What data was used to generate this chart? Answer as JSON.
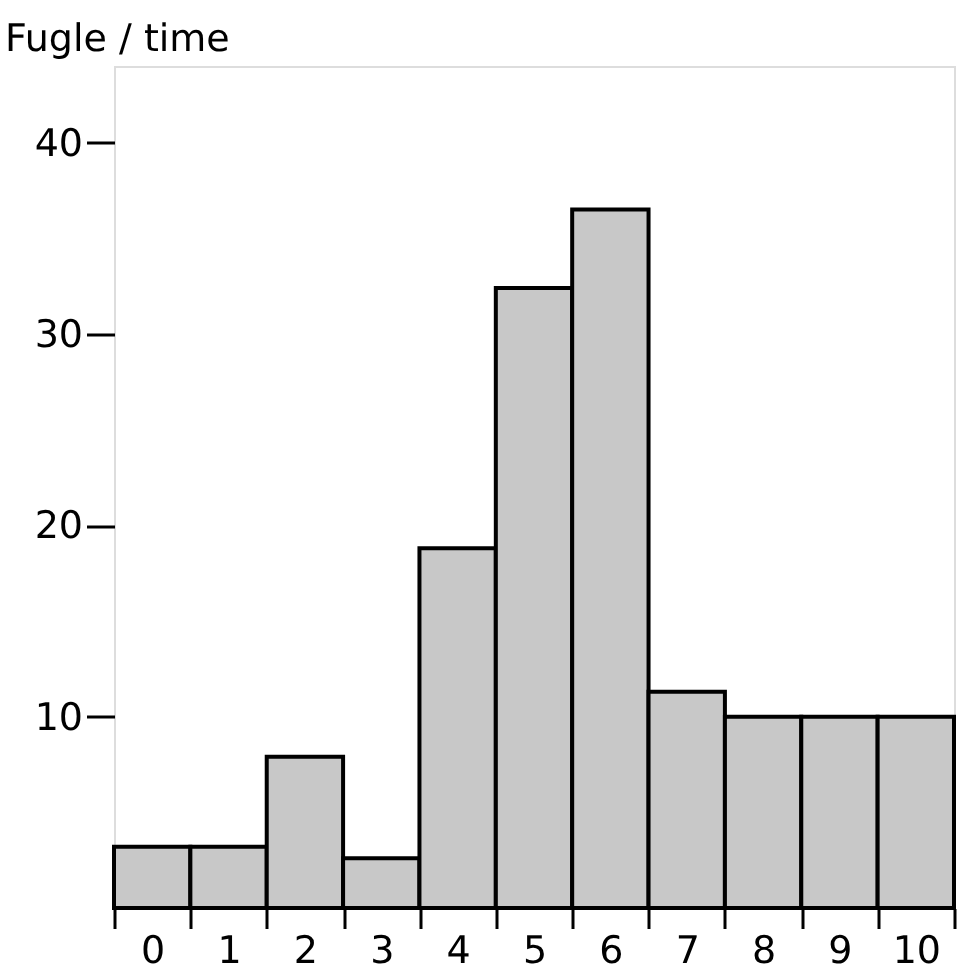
{
  "chart_data": {
    "type": "bar",
    "ylabel": "Fugle / time",
    "categories": [
      "0",
      "1",
      "2",
      "3",
      "4",
      "5",
      "6",
      "7",
      "8",
      "9",
      "10"
    ],
    "values": [
      3.2,
      3.2,
      7.9,
      2.6,
      18.8,
      32.4,
      36.5,
      11.3,
      10.0,
      10.0,
      10.0
    ],
    "color": "#c8c8c8",
    "ylim": [
      0,
      44
    ],
    "yticks": [
      10,
      20,
      30,
      40
    ],
    "grid": false
  }
}
